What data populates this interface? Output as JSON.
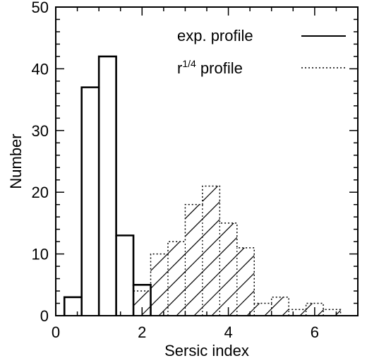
{
  "chart_data": {
    "type": "bar",
    "xlabel": "Sersic index",
    "ylabel": "Number",
    "xlim": [
      0,
      7
    ],
    "ylim": [
      0,
      50
    ],
    "xticks": [
      0,
      2,
      4,
      6
    ],
    "yticks": [
      0,
      10,
      20,
      30,
      40,
      50
    ],
    "bin_width": 0.4,
    "series": [
      {
        "name": "exp. profile",
        "style": "solid",
        "bins": [
          {
            "x0": 0.2,
            "x1": 0.6,
            "value": 3
          },
          {
            "x0": 0.6,
            "x1": 1.0,
            "value": 37
          },
          {
            "x0": 1.0,
            "x1": 1.4,
            "value": 42
          },
          {
            "x0": 1.4,
            "x1": 1.8,
            "value": 13
          },
          {
            "x0": 1.8,
            "x1": 2.2,
            "value": 5
          }
        ]
      },
      {
        "name": "r1/4 profile",
        "style": "dotted-hatched",
        "bins": [
          {
            "x0": 1.8,
            "x1": 2.2,
            "value": 4
          },
          {
            "x0": 2.2,
            "x1": 2.6,
            "value": 10
          },
          {
            "x0": 2.6,
            "x1": 3.0,
            "value": 12
          },
          {
            "x0": 3.0,
            "x1": 3.4,
            "value": 18
          },
          {
            "x0": 3.4,
            "x1": 3.8,
            "value": 21
          },
          {
            "x0": 3.8,
            "x1": 4.2,
            "value": 15
          },
          {
            "x0": 4.2,
            "x1": 4.6,
            "value": 11
          },
          {
            "x0": 4.6,
            "x1": 5.0,
            "value": 2
          },
          {
            "x0": 5.0,
            "x1": 5.4,
            "value": 3
          },
          {
            "x0": 5.4,
            "x1": 5.8,
            "value": 1
          },
          {
            "x0": 5.8,
            "x1": 6.2,
            "value": 2
          },
          {
            "x0": 6.2,
            "x1": 6.6,
            "value": 1
          }
        ]
      }
    ],
    "legend": {
      "placement": "top-right",
      "entries": [
        {
          "label_main": "exp. profile",
          "label_base": "",
          "label_sup": "",
          "label_tail": "",
          "style": "solid"
        },
        {
          "label_main": "",
          "label_base": "r",
          "label_sup": "1/4",
          "label_tail": " profile",
          "style": "dotted"
        }
      ]
    }
  }
}
